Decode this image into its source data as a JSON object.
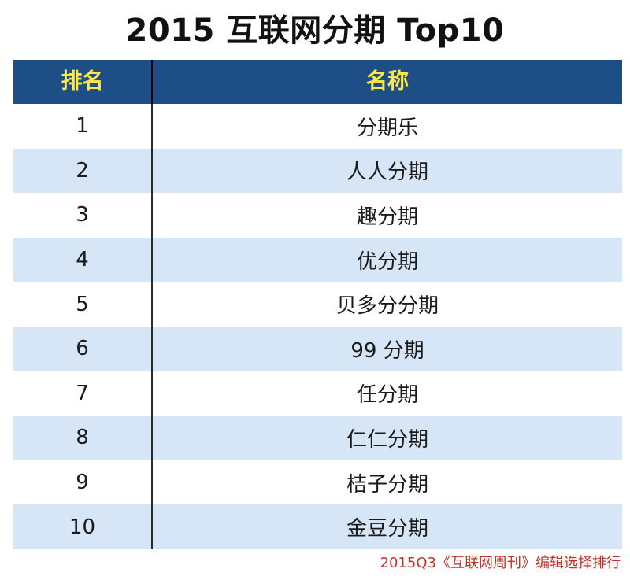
{
  "title": "2015 互联网分期 Top10",
  "table": {
    "headers": {
      "rank": "排名",
      "name": "名称"
    },
    "rows": [
      {
        "rank": "1",
        "name": "分期乐"
      },
      {
        "rank": "2",
        "name": "人人分期"
      },
      {
        "rank": "3",
        "name": "趣分期"
      },
      {
        "rank": "4",
        "name": "优分期"
      },
      {
        "rank": "5",
        "name": "贝多分分期"
      },
      {
        "rank": "6",
        "name": "99 分期"
      },
      {
        "rank": "7",
        "name": "任分期"
      },
      {
        "rank": "8",
        "name": "仁仁分期"
      },
      {
        "rank": "9",
        "name": "桔子分期"
      },
      {
        "rank": "10",
        "name": "金豆分期"
      }
    ]
  },
  "caption": "2015Q3《互联网周刊》编辑选择排行",
  "colors": {
    "header_bg": "#1d4f86",
    "header_text": "#ffe84a",
    "alt_row_bg": "#d6e6f6",
    "caption_text": "#c0312a"
  }
}
